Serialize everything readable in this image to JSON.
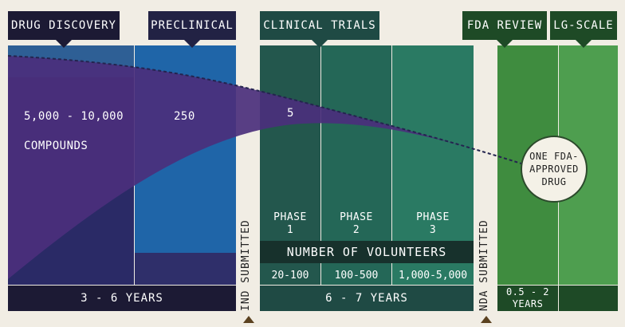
{
  "stages": {
    "drug_discovery": "DRUG DISCOVERY",
    "preclinical": "PRECLINICAL",
    "clinical_trials": "CLINICAL TRIALS",
    "fda_review": "FDA REVIEW",
    "lg_scale": "LG-SCALE"
  },
  "counts": {
    "compounds_range": "5,000 - 10,000",
    "compounds_label": "COMPOUNDS",
    "preclinical_count": "250",
    "clinical_count": "5"
  },
  "result": {
    "line1": "ONE FDA-",
    "line2": "APPROVED",
    "line3": "DRUG"
  },
  "phases": [
    {
      "line1": "PHASE",
      "line2": "1",
      "volunteers": "20-100"
    },
    {
      "line1": "PHASE",
      "line2": "2",
      "volunteers": "100-500"
    },
    {
      "line1": "PHASE",
      "line2": "3",
      "volunteers": "1,000-5,000"
    }
  ],
  "volunteers_header": "NUMBER OF VOLUNTEERS",
  "durations": {
    "discovery_preclinical": "3 - 6 YEARS",
    "clinical": "6 - 7 YEARS",
    "fda_line1": "0.5 - 2",
    "fda_line2": "YEARS"
  },
  "milestones": {
    "ind": "IND SUBMITTED",
    "nda": "NDA SUBMITTED"
  },
  "colors": {
    "discovery": "#2a2a66",
    "preclinical": "#2f2f6a",
    "clinical_1": "#23574d",
    "clinical_2": "#246757",
    "clinical_3": "#2a7a63",
    "fda": "#3f8c3f",
    "lg_scale": "#4e9e4f",
    "funnel": "#4b2f7c",
    "background": "#f1ede4"
  }
}
